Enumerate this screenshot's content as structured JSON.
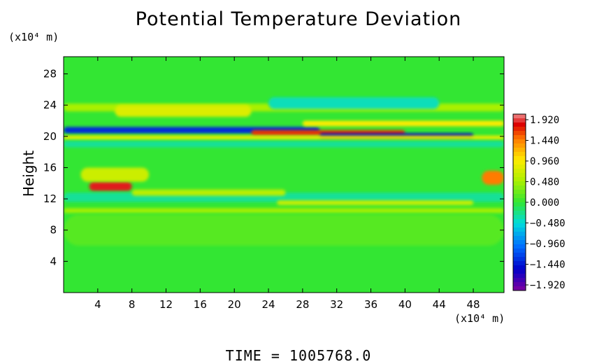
{
  "chart_data": {
    "type": "heatmap",
    "title": "Potential Temperature Deviation",
    "ylabel": "Height",
    "xlabel": "",
    "x_unit_label": "(x10⁴ m)",
    "y_unit_label": "(x10⁴ m)",
    "footer": "TIME  =  1005768.0",
    "xlim": [
      0,
      51.6
    ],
    "ylim": [
      0,
      30.2
    ],
    "x_ticks": [
      4,
      8,
      12,
      16,
      20,
      24,
      28,
      32,
      36,
      40,
      44,
      48
    ],
    "y_ticks": [
      4,
      8,
      12,
      16,
      20,
      24,
      28
    ],
    "colorbar": {
      "labels": [
        "1.920",
        "1.440",
        "0.960",
        "0.480",
        "0.000",
        "−0.480",
        "−0.960",
        "−1.440",
        "−1.920"
      ],
      "range": [
        -2.1,
        2.1
      ]
    },
    "background_color": "#33e633",
    "features": [
      {
        "x": [
          0,
          51.6
        ],
        "y": [
          23.2,
          24.2
        ],
        "value": 0.5
      },
      {
        "x": [
          6,
          22
        ],
        "y": [
          22.5,
          24.0
        ],
        "value": 0.8
      },
      {
        "x": [
          24,
          44
        ],
        "y": [
          23.5,
          25.0
        ],
        "value": -0.4
      },
      {
        "x": [
          0,
          30
        ],
        "y": [
          20.4,
          21.2
        ],
        "value": -1.4
      },
      {
        "x": [
          28,
          51.6
        ],
        "y": [
          21.3,
          22.0
        ],
        "value": 1.0
      },
      {
        "x": [
          22,
          40
        ],
        "y": [
          20.1,
          20.8
        ],
        "value": 1.7
      },
      {
        "x": [
          30,
          48
        ],
        "y": [
          19.8,
          20.4
        ],
        "value": -1.6
      },
      {
        "x": [
          0,
          51.6
        ],
        "y": [
          19.6,
          20.1
        ],
        "value": 0.9
      },
      {
        "x": [
          0,
          51.6
        ],
        "y": [
          18.6,
          19.4
        ],
        "value": -0.3
      },
      {
        "x": [
          3,
          8
        ],
        "y": [
          13.0,
          14.2
        ],
        "value": 1.9
      },
      {
        "x": [
          2,
          10
        ],
        "y": [
          14.2,
          16.0
        ],
        "value": 0.7
      },
      {
        "x": [
          49,
          51.6
        ],
        "y": [
          13.8,
          15.6
        ],
        "value": 1.5
      },
      {
        "x": [
          0,
          51.6
        ],
        "y": [
          11.6,
          12.8
        ],
        "value": -0.3
      },
      {
        "x": [
          8,
          26
        ],
        "y": [
          12.4,
          13.2
        ],
        "value": 0.6
      },
      {
        "x": [
          25,
          48
        ],
        "y": [
          11.2,
          11.8
        ],
        "value": 0.7
      },
      {
        "x": [
          0,
          51.6
        ],
        "y": [
          10.2,
          10.8
        ],
        "value": 0.5
      },
      {
        "x": [
          0,
          51.6
        ],
        "y": [
          6.0,
          10.0
        ],
        "value": 0.15
      }
    ]
  }
}
